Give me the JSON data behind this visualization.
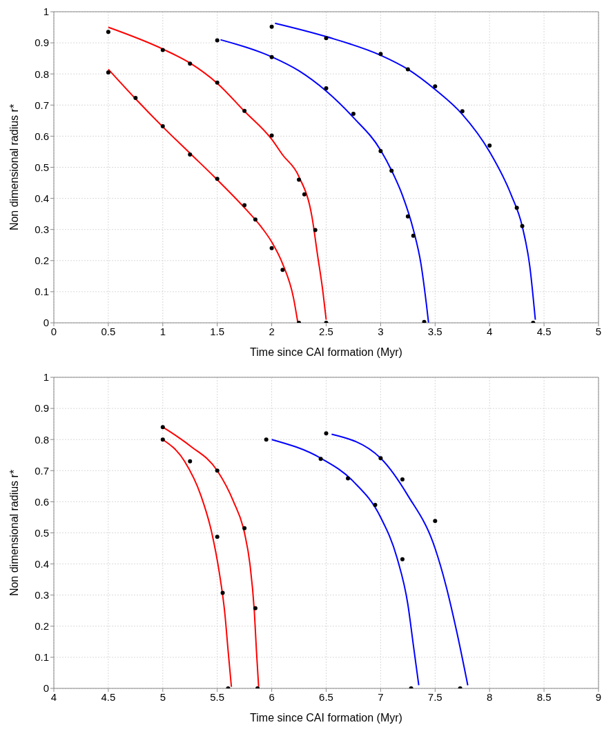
{
  "chart_data": [
    {
      "type": "line",
      "xlabel": "Time since CAI formation (Myr)",
      "ylabel": "Non dimensional radius r*",
      "xlim": [
        0,
        5
      ],
      "ylim": [
        0,
        1
      ],
      "xticks": [
        0,
        0.5,
        1,
        1.5,
        2,
        2.5,
        3,
        3.5,
        4,
        4.5,
        5
      ],
      "yticks": [
        0,
        0.1,
        0.2,
        0.3,
        0.4,
        0.5,
        0.6,
        0.7,
        0.8,
        0.9,
        1
      ],
      "grid": true,
      "line_style": "solid",
      "series": [
        {
          "color": "#ff0000",
          "marker": "none",
          "x": [
            0.5,
            0.75,
            1,
            1.25,
            1.5,
            1.75,
            1.9,
            2,
            2.1,
            2.2,
            2.24
          ],
          "values": [
            0.815,
            0.72,
            0.63,
            0.545,
            0.46,
            0.37,
            0.31,
            0.26,
            0.19,
            0.08,
            0
          ]
        },
        {
          "color": "#ff0000",
          "marker": "none",
          "x": [
            0.5,
            1,
            1.25,
            1.5,
            1.75,
            2,
            2.1,
            2.25,
            2.37,
            2.42,
            2.47,
            2.5
          ],
          "values": [
            0.95,
            0.88,
            0.835,
            0.77,
            0.68,
            0.59,
            0.54,
            0.47,
            0.34,
            0.22,
            0.1,
            0.01
          ]
        },
        {
          "color": "#0000ff",
          "marker": "none",
          "x": [
            1.53,
            2,
            2.25,
            2.5,
            2.75,
            3,
            3.1,
            3.2,
            3.3,
            3.37,
            3.42,
            3.44
          ],
          "values": [
            0.91,
            0.855,
            0.81,
            0.745,
            0.66,
            0.555,
            0.49,
            0.41,
            0.3,
            0.19,
            0.06,
            0
          ]
        },
        {
          "color": "#0000ff",
          "marker": "none",
          "x": [
            2.03,
            2.5,
            3,
            3.25,
            3.5,
            3.75,
            4,
            4.2,
            4.3,
            4.37,
            4.42
          ],
          "values": [
            0.963,
            0.92,
            0.86,
            0.815,
            0.75,
            0.67,
            0.55,
            0.41,
            0.31,
            0.18,
            0.01
          ]
        },
        {
          "type": "scatter",
          "color": "#000000",
          "marker": "circle",
          "x": [
            0.5,
            0.5,
            0.75,
            1,
            1,
            1.25,
            1.25,
            1.5,
            1.5,
            1.5,
            1.75,
            1.75,
            1.85,
            2,
            2,
            2,
            2,
            2.1,
            2.25,
            2.3,
            2.4,
            2.25,
            2.5,
            2.5,
            2.5,
            2.75,
            3,
            3,
            3.1,
            3.25,
            3.25,
            3.3,
            3.4,
            3.5,
            3.75,
            4,
            4.25,
            4.3,
            4.4
          ],
          "values": [
            0.935,
            0.805,
            0.723,
            0.877,
            0.632,
            0.833,
            0.541,
            0.908,
            0.772,
            0.463,
            0.681,
            0.378,
            0.332,
            0.952,
            0.854,
            0.602,
            0.24,
            0.17,
            0.46,
            0.413,
            0.298,
            0,
            0.915,
            0.754,
            0,
            0.672,
            0.864,
            0.552,
            0.489,
            0.815,
            0.342,
            0.28,
            0.003,
            0.76,
            0.68,
            0.57,
            0.37,
            0.311,
            0
          ]
        }
      ]
    },
    {
      "type": "line",
      "xlabel": "Time since CAI formation (Myr)",
      "ylabel": "Non dimensional radius r*",
      "xlim": [
        4,
        9
      ],
      "ylim": [
        0,
        1
      ],
      "xticks": [
        4,
        4.5,
        5,
        5.5,
        6,
        6.5,
        7,
        7.5,
        8,
        8.5,
        9
      ],
      "yticks": [
        0,
        0.1,
        0.2,
        0.3,
        0.4,
        0.5,
        0.6,
        0.7,
        0.8,
        0.9,
        1
      ],
      "grid": true,
      "line_style": "solid",
      "series": [
        {
          "color": "#ff0000",
          "marker": "none",
          "x": [
            5,
            5.2,
            5.35,
            5.45,
            5.52,
            5.57,
            5.6,
            5.63
          ],
          "values": [
            0.8,
            0.73,
            0.62,
            0.5,
            0.37,
            0.24,
            0.12,
            0.005
          ]
        },
        {
          "color": "#ff0000",
          "marker": "none",
          "x": [
            5,
            5.25,
            5.5,
            5.65,
            5.75,
            5.8,
            5.84,
            5.86,
            5.88
          ],
          "values": [
            0.84,
            0.78,
            0.7,
            0.6,
            0.5,
            0.4,
            0.25,
            0.12,
            0.005
          ]
        },
        {
          "color": "#0000ff",
          "marker": "none",
          "x": [
            6,
            6.45,
            6.75,
            7,
            7.15,
            7.25,
            7.3,
            7.35
          ],
          "values": [
            0.8,
            0.74,
            0.665,
            0.55,
            0.42,
            0.27,
            0.14,
            0.01
          ]
        },
        {
          "color": "#0000ff",
          "marker": "none",
          "x": [
            6.55,
            7,
            7.25,
            7.5,
            7.6,
            7.7,
            7.8
          ],
          "values": [
            0.817,
            0.74,
            0.62,
            0.45,
            0.33,
            0.18,
            0.01
          ]
        },
        {
          "type": "scatter",
          "color": "#000000",
          "marker": "circle",
          "x": [
            5,
            5,
            5.25,
            5.5,
            5.5,
            5.55,
            5.6,
            5.75,
            5.85,
            5.87,
            5.95,
            6.45,
            6.5,
            6.7,
            6.95,
            7,
            7.2,
            7.2,
            7.28,
            7.5,
            7.73
          ],
          "values": [
            0.84,
            0.8,
            0.73,
            0.7,
            0.487,
            0.307,
            0,
            0.515,
            0.258,
            0,
            0.8,
            0.738,
            0.82,
            0.675,
            0.59,
            0.74,
            0.672,
            0.415,
            0,
            0.538,
            0
          ]
        }
      ]
    }
  ]
}
